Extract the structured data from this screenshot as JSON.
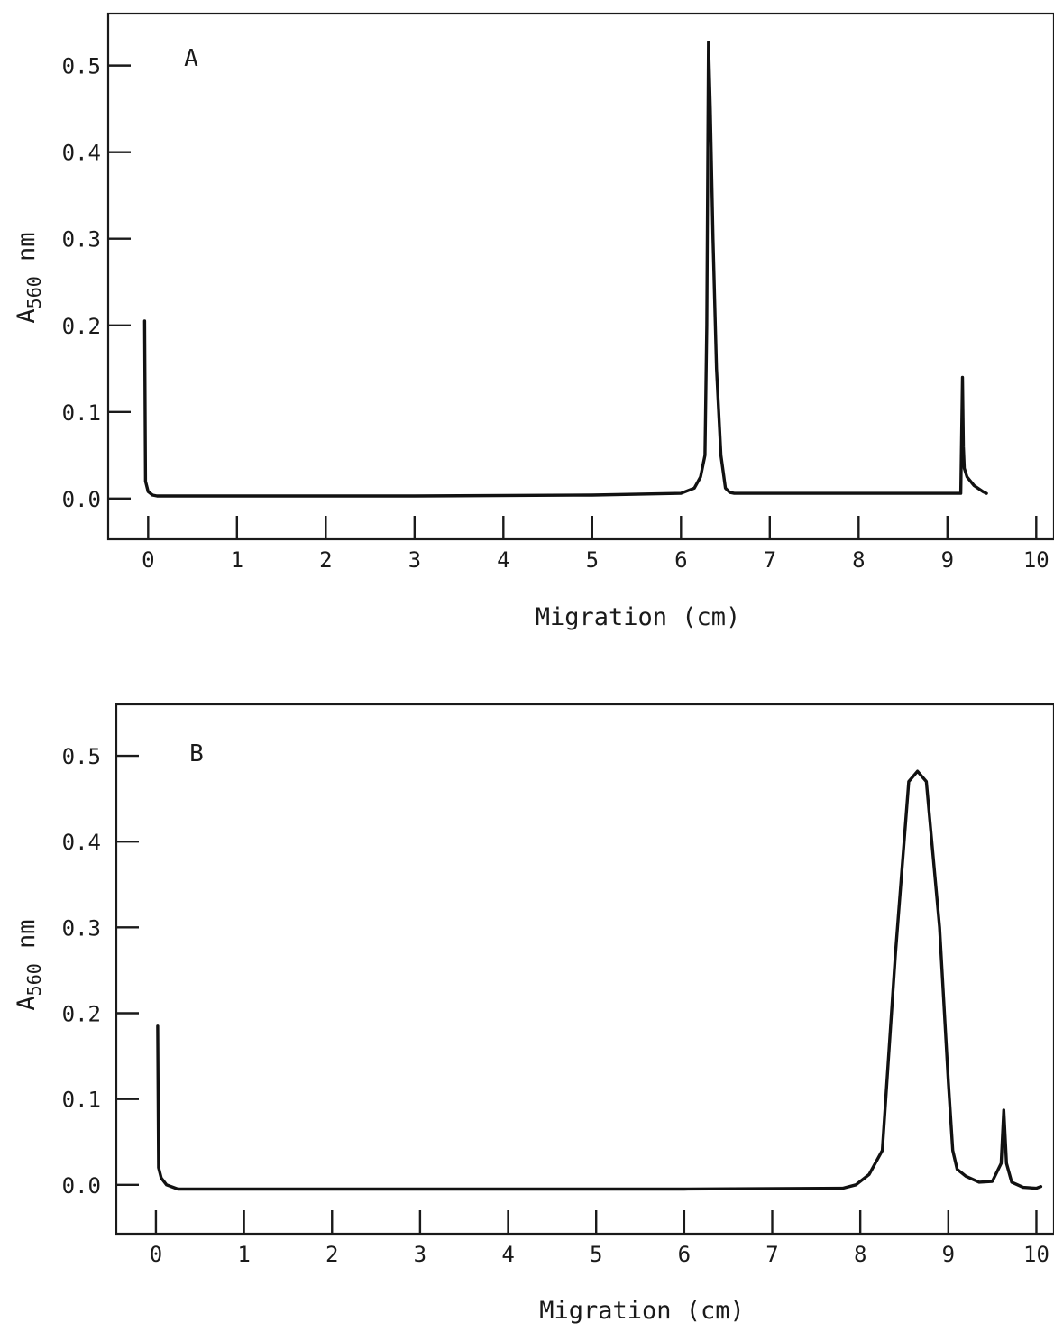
{
  "chart_data": [
    {
      "type": "line",
      "panel_label": "A",
      "xlabel": "Migration (cm)",
      "ylabel_main": "A",
      "ylabel_sub": "560",
      "ylabel_unit": " nm",
      "xlim": [
        -0.45,
        10.2
      ],
      "ylim": [
        -0.047,
        0.56
      ],
      "x_ticks": [
        0,
        1,
        2,
        3,
        4,
        5,
        6,
        7,
        8,
        9,
        10
      ],
      "y_ticks": [
        0.0,
        0.1,
        0.2,
        0.3,
        0.4,
        0.5
      ],
      "y_tick_labels": [
        "0.0",
        "0.1",
        "0.2",
        "0.3",
        "0.4",
        "0.5"
      ],
      "grid": false,
      "series": [
        {
          "x": [
            -0.04,
            -0.03,
            0.0,
            0.05,
            0.1,
            1.0,
            3.0,
            5.0,
            6.0,
            6.15,
            6.22,
            6.27,
            6.29,
            6.31,
            6.33,
            6.36,
            6.4,
            6.45,
            6.5,
            6.55,
            6.6,
            7.0,
            8.0,
            9.15,
            9.17,
            9.18,
            9.19,
            9.22,
            9.3,
            9.4,
            9.44
          ],
          "y": [
            0.205,
            0.02,
            0.008,
            0.004,
            0.003,
            0.003,
            0.003,
            0.004,
            0.006,
            0.012,
            0.025,
            0.05,
            0.2,
            0.527,
            0.45,
            0.3,
            0.15,
            0.05,
            0.012,
            0.007,
            0.006,
            0.006,
            0.006,
            0.006,
            0.14,
            0.06,
            0.035,
            0.025,
            0.015,
            0.008,
            0.006
          ]
        }
      ]
    },
    {
      "type": "line",
      "panel_label": "B",
      "xlabel": "Migration (cm)",
      "ylabel_main": "A",
      "ylabel_sub": "560",
      "ylabel_unit": " nm",
      "xlim": [
        -0.45,
        10.2
      ],
      "ylim": [
        -0.057,
        0.56
      ],
      "x_ticks": [
        0,
        1,
        2,
        3,
        4,
        5,
        6,
        7,
        8,
        9,
        10
      ],
      "y_ticks": [
        0.0,
        0.1,
        0.2,
        0.3,
        0.4,
        0.5
      ],
      "y_tick_labels": [
        "0.0",
        "0.1",
        "0.2",
        "0.3",
        "0.4",
        "0.5"
      ],
      "grid": false,
      "series": [
        {
          "x": [
            0.02,
            0.03,
            0.06,
            0.12,
            0.25,
            1.0,
            3.0,
            6.0,
            7.8,
            7.95,
            8.1,
            8.25,
            8.4,
            8.55,
            8.65,
            8.75,
            8.9,
            9.0,
            9.05,
            9.1,
            9.2,
            9.35,
            9.5,
            9.6,
            9.63,
            9.66,
            9.72,
            9.85,
            10.0,
            10.05
          ],
          "y": [
            0.185,
            0.02,
            0.008,
            0.0,
            -0.005,
            -0.005,
            -0.005,
            -0.005,
            -0.004,
            0.0,
            0.012,
            0.04,
            0.27,
            0.47,
            0.482,
            0.47,
            0.3,
            0.12,
            0.04,
            0.018,
            0.01,
            0.003,
            0.004,
            0.025,
            0.087,
            0.025,
            0.003,
            -0.003,
            -0.004,
            -0.002
          ]
        }
      ]
    }
  ]
}
